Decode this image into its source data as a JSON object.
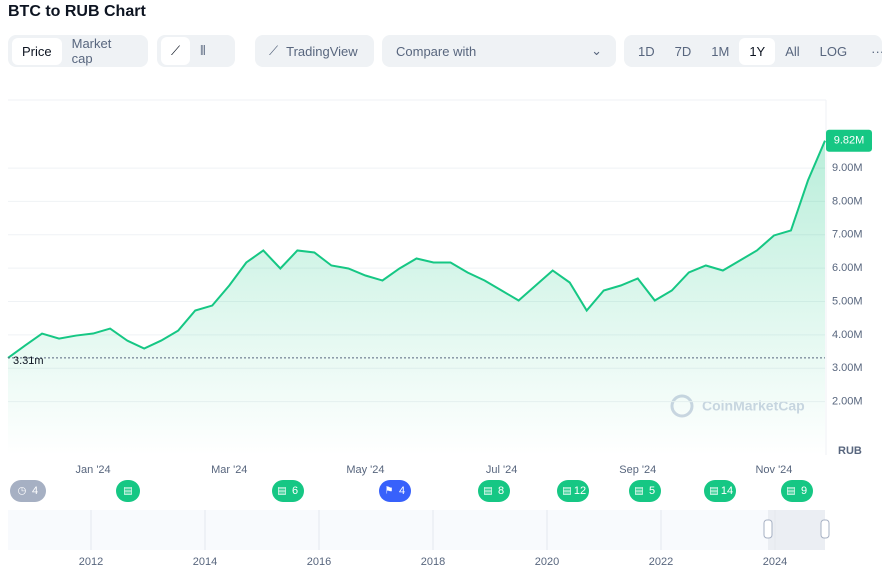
{
  "header": {
    "title": "BTC to RUB Chart"
  },
  "toolbar": {
    "modes": [
      "Price",
      "Market cap"
    ],
    "tradingview": "TradingView",
    "compare": "Compare with",
    "ranges": [
      "1D",
      "7D",
      "1M",
      "1Y",
      "All",
      "LOG"
    ],
    "more": "···"
  },
  "chart_data": {
    "type": "line",
    "categories": [
      null,
      null,
      null,
      null,
      null,
      "Jan '24",
      null,
      null,
      null,
      null,
      null,
      null,
      null,
      "Mar '24",
      null,
      null,
      null,
      null,
      null,
      null,
      null,
      "May '24",
      null,
      null,
      null,
      null,
      null,
      null,
      null,
      "Jul '24",
      null,
      null,
      null,
      null,
      null,
      null,
      null,
      "Sep '24",
      null,
      null,
      null,
      null,
      null,
      null,
      null,
      "Nov '24",
      null,
      null,
      null
    ],
    "series": [
      {
        "name": "BTC/RUB",
        "color": "#16c784",
        "values": [
          3.31,
          3.68,
          4.04,
          3.89,
          3.98,
          4.04,
          4.19,
          3.83,
          3.59,
          3.83,
          4.13,
          4.73,
          4.88,
          5.48,
          6.17,
          6.53,
          5.99,
          6.53,
          6.47,
          6.08,
          5.99,
          5.78,
          5.63,
          5.99,
          6.29,
          6.17,
          6.17,
          5.87,
          5.63,
          5.33,
          5.03,
          5.48,
          5.93,
          5.57,
          4.73,
          5.33,
          5.48,
          5.69,
          5.03,
          5.33,
          5.87,
          6.08,
          5.93,
          6.23,
          6.53,
          6.98,
          7.13,
          8.63,
          9.82
        ]
      }
    ],
    "ylim": [
      0.4,
      11.04
    ],
    "yticks": [
      {
        "value": 2,
        "label": "2.00M"
      },
      {
        "value": 3,
        "label": "3.00M"
      },
      {
        "value": 4,
        "label": "4.00M"
      },
      {
        "value": 5,
        "label": "5.00M"
      },
      {
        "value": 6,
        "label": "6.00M"
      },
      {
        "value": 7,
        "label": "7.00M"
      },
      {
        "value": 8,
        "label": "8.00M"
      },
      {
        "value": 9,
        "label": "9.00M"
      }
    ],
    "grid": true,
    "start_price": {
      "value": 3.31,
      "label": "3.31m"
    },
    "current_price": {
      "value": 9.82,
      "label": "9.82M"
    },
    "currency": "RUB",
    "watermark": "CoinMarketCap"
  },
  "events": [
    "4",
    null,
    "6",
    "4",
    "8",
    "12",
    "5",
    "14",
    "9"
  ],
  "navigator": {
    "years": [
      "2012",
      "2014",
      "2016",
      "2018",
      "2020",
      "2022",
      "2024"
    ]
  }
}
